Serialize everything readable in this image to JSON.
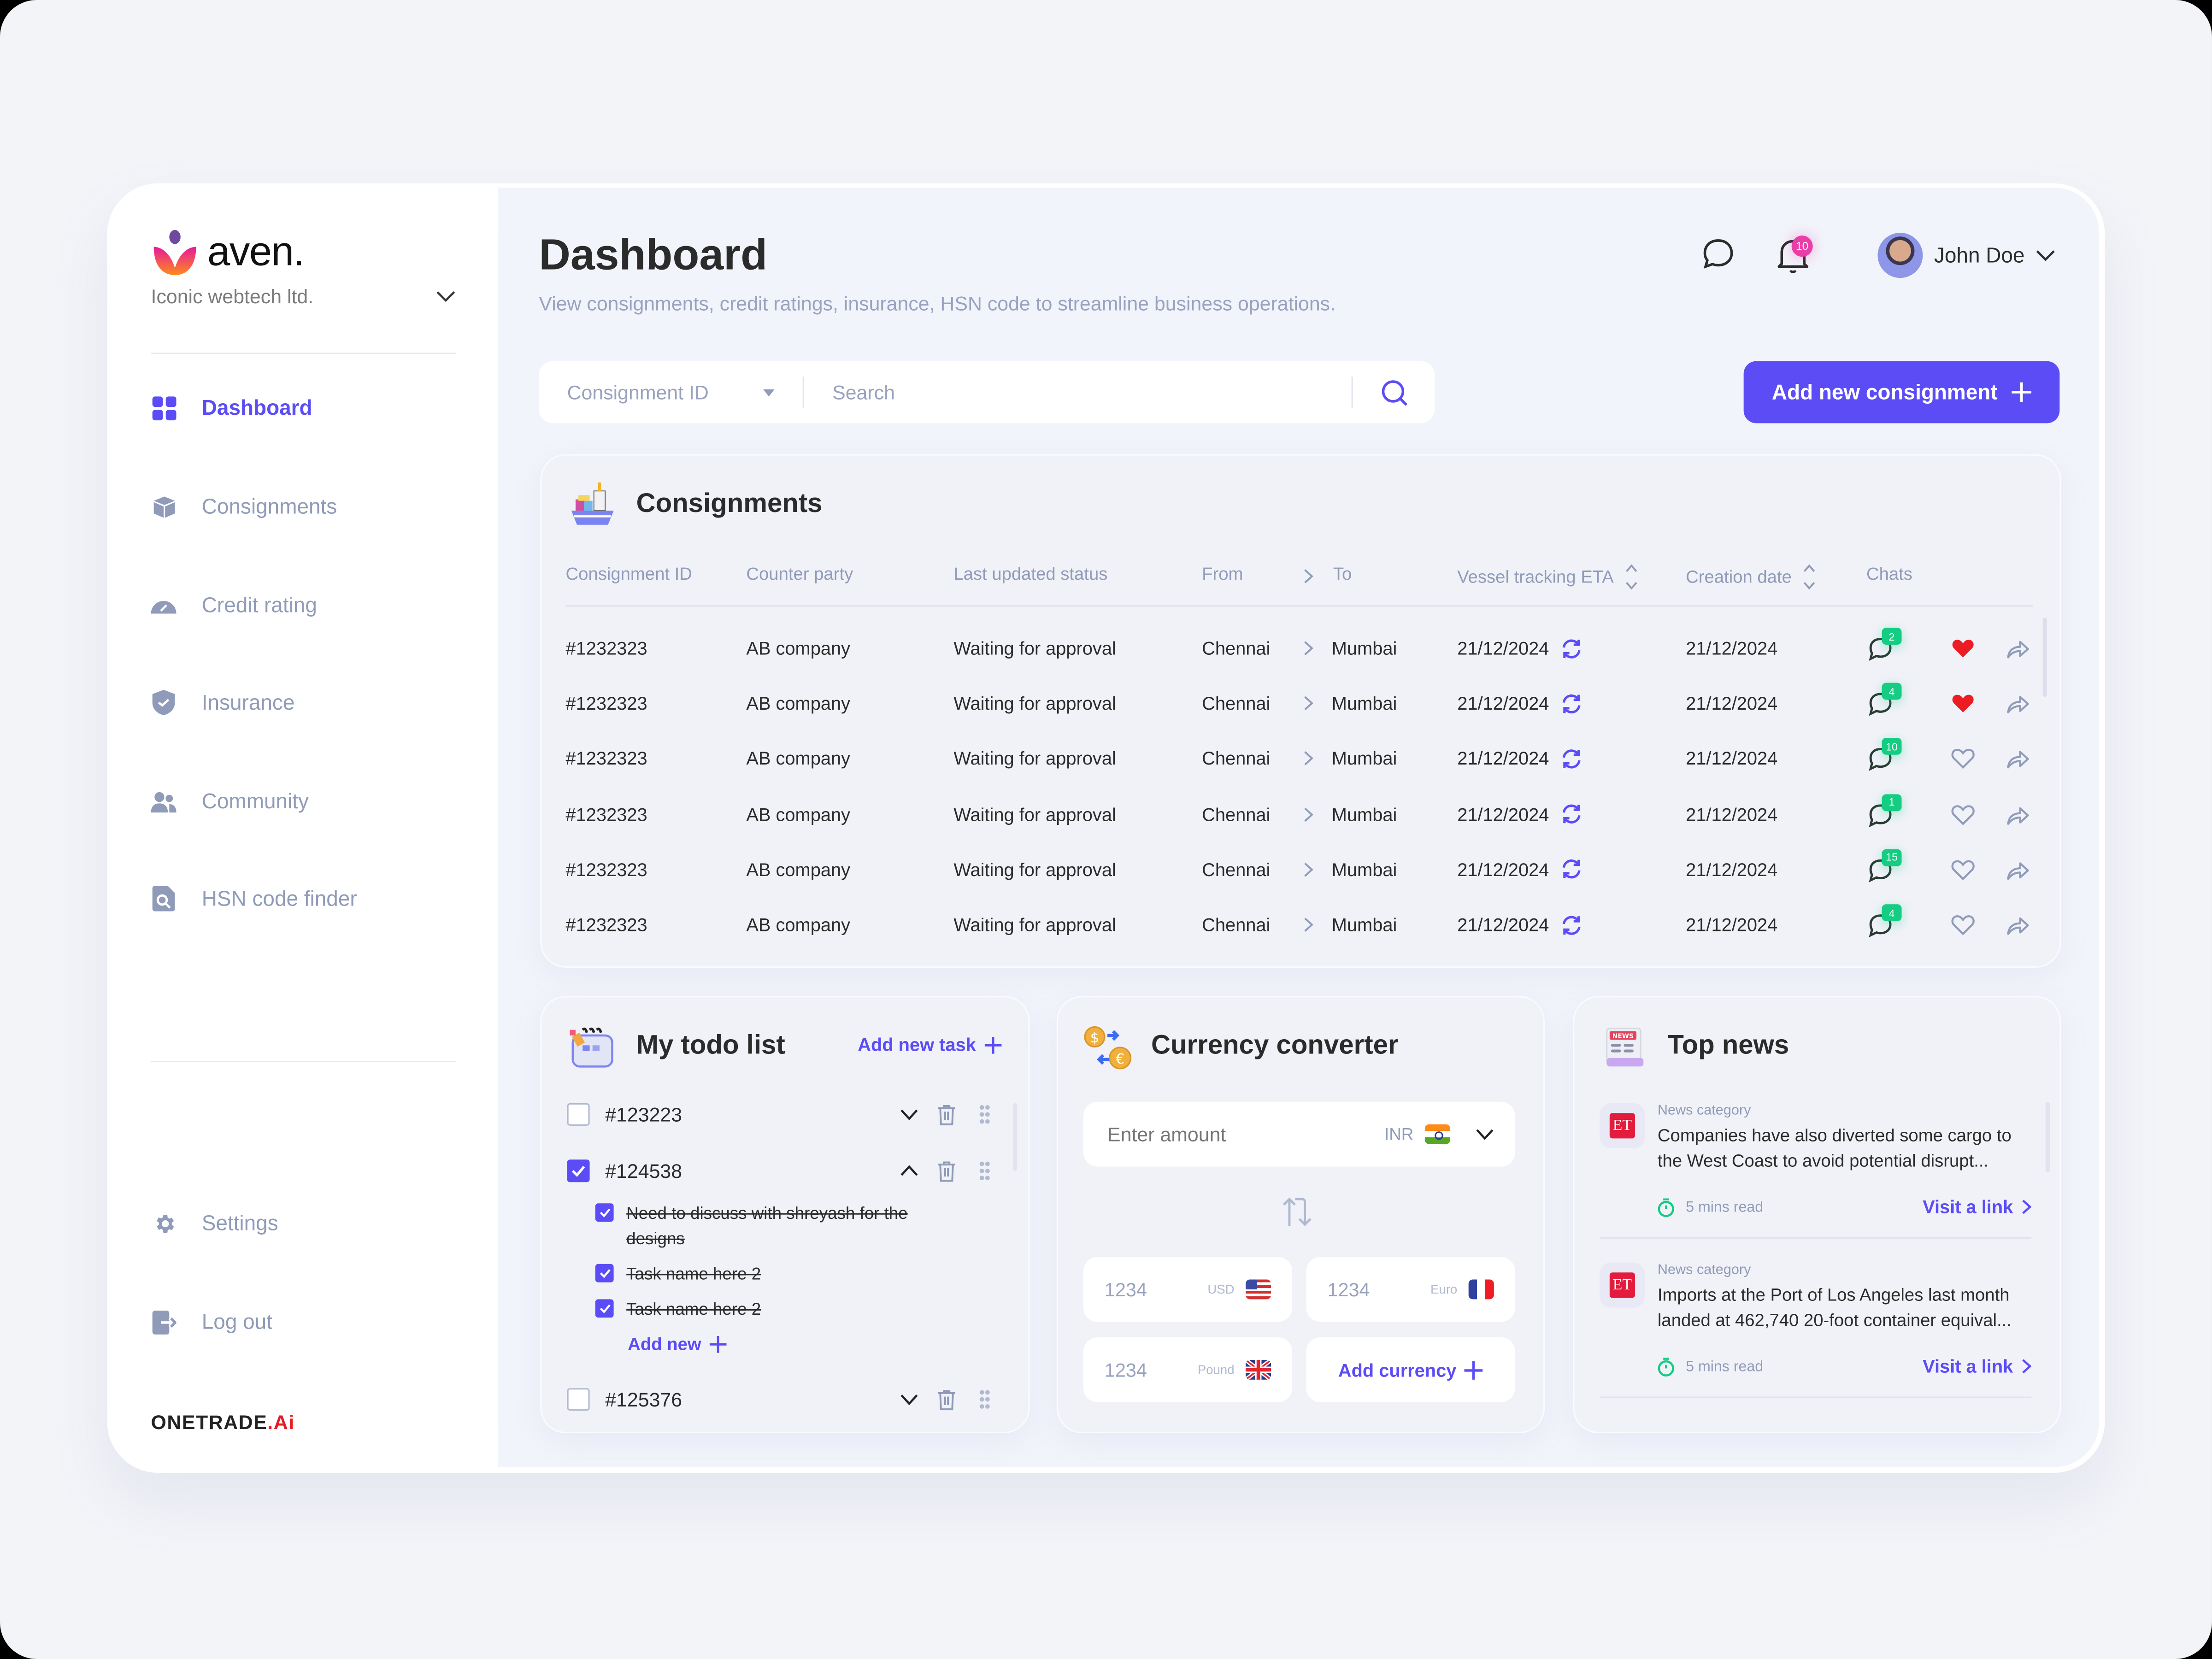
{
  "app": {
    "brand": "aven.",
    "organization": "Iconic webtech ltd.",
    "footer_brand": "ONETRADE",
    "footer_brand_suffix": ".Ai"
  },
  "sidebar": {
    "items": [
      {
        "label": "Dashboard",
        "icon": "grid-icon",
        "active": true
      },
      {
        "label": "Consignments",
        "icon": "box-icon"
      },
      {
        "label": "Credit rating",
        "icon": "gauge-icon"
      },
      {
        "label": "Insurance",
        "icon": "shield-check-icon"
      },
      {
        "label": "Community",
        "icon": "users-icon"
      },
      {
        "label": "HSN code finder",
        "icon": "document-search-icon"
      }
    ],
    "bottom_items": [
      {
        "label": "Settings",
        "icon": "gear-icon"
      },
      {
        "label": "Log out",
        "icon": "logout-icon"
      }
    ]
  },
  "header": {
    "title": "Dashboard",
    "subtitle": "View consignments, credit ratings, insurance, HSN code to streamline business operations.",
    "notification_count": "10",
    "user_name": "John Doe"
  },
  "search": {
    "filter_value": "Consignment ID",
    "placeholder": "Search"
  },
  "actions": {
    "add_consignment": "Add new consignment"
  },
  "consignments": {
    "title": "Consignments",
    "columns": [
      "Consignment ID",
      "Counter party",
      "Last updated status",
      "From",
      "To",
      "Vessel tracking ETA",
      "Creation date",
      "Chats"
    ],
    "rows": [
      {
        "id": "#1232323",
        "party": "AB company",
        "status": "Waiting for approval",
        "from": "Chennai",
        "to": "Mumbai",
        "eta": "21/12/2024",
        "created": "21/12/2024",
        "chats": "2",
        "favorite": true
      },
      {
        "id": "#1232323",
        "party": "AB company",
        "status": "Waiting for approval",
        "from": "Chennai",
        "to": "Mumbai",
        "eta": "21/12/2024",
        "created": "21/12/2024",
        "chats": "4",
        "favorite": true
      },
      {
        "id": "#1232323",
        "party": "AB company",
        "status": "Waiting for approval",
        "from": "Chennai",
        "to": "Mumbai",
        "eta": "21/12/2024",
        "created": "21/12/2024",
        "chats": "10",
        "favorite": false
      },
      {
        "id": "#1232323",
        "party": "AB company",
        "status": "Waiting for approval",
        "from": "Chennai",
        "to": "Mumbai",
        "eta": "21/12/2024",
        "created": "21/12/2024",
        "chats": "1",
        "favorite": false
      },
      {
        "id": "#1232323",
        "party": "AB company",
        "status": "Waiting for approval",
        "from": "Chennai",
        "to": "Mumbai",
        "eta": "21/12/2024",
        "created": "21/12/2024",
        "chats": "15",
        "favorite": false
      },
      {
        "id": "#1232323",
        "party": "AB company",
        "status": "Waiting for approval",
        "from": "Chennai",
        "to": "Mumbai",
        "eta": "21/12/2024",
        "created": "21/12/2024",
        "chats": "4",
        "favorite": false
      }
    ]
  },
  "todo": {
    "title": "My todo list",
    "add_task": "Add new task",
    "tasks": [
      {
        "id": "#123223",
        "checked": false,
        "expanded": false
      },
      {
        "id": "#124538",
        "checked": true,
        "expanded": true,
        "subtasks": [
          {
            "text": "Need to discuss with shreyash for the designs",
            "done": true
          },
          {
            "text": "Task name here 2",
            "done": true
          },
          {
            "text": "Task name here 2",
            "done": true
          }
        ],
        "add_new": "Add new"
      },
      {
        "id": "#125376",
        "checked": false,
        "expanded": false
      }
    ]
  },
  "currency": {
    "title": "Currency converter",
    "amount_placeholder": "Enter amount",
    "base_currency": "INR",
    "conversions": [
      {
        "value": "1234",
        "currency": "USD"
      },
      {
        "value": "1234",
        "currency": "Euro"
      },
      {
        "value": "1234",
        "currency": "Pound"
      }
    ],
    "add_currency": "Add currency"
  },
  "news": {
    "title": "Top news",
    "items": [
      {
        "source": "ET",
        "category": "News category",
        "text": "Companies have also diverted some cargo to the West Coast to avoid potential disrupt...",
        "read_time": "5 mins read",
        "link": "Visit a link"
      },
      {
        "source": "ET",
        "category": "News category",
        "text": "Imports at the Port of Los Angeles last month landed at 462,740 20-foot container equival...",
        "read_time": "5 mins read",
        "link": "Visit a link"
      }
    ]
  },
  "colors": {
    "accent": "#5b4cf6",
    "success": "#14cc82",
    "heart": "#ed1c24",
    "muted": "#8f9bb8",
    "notification": "#e93ea7"
  }
}
